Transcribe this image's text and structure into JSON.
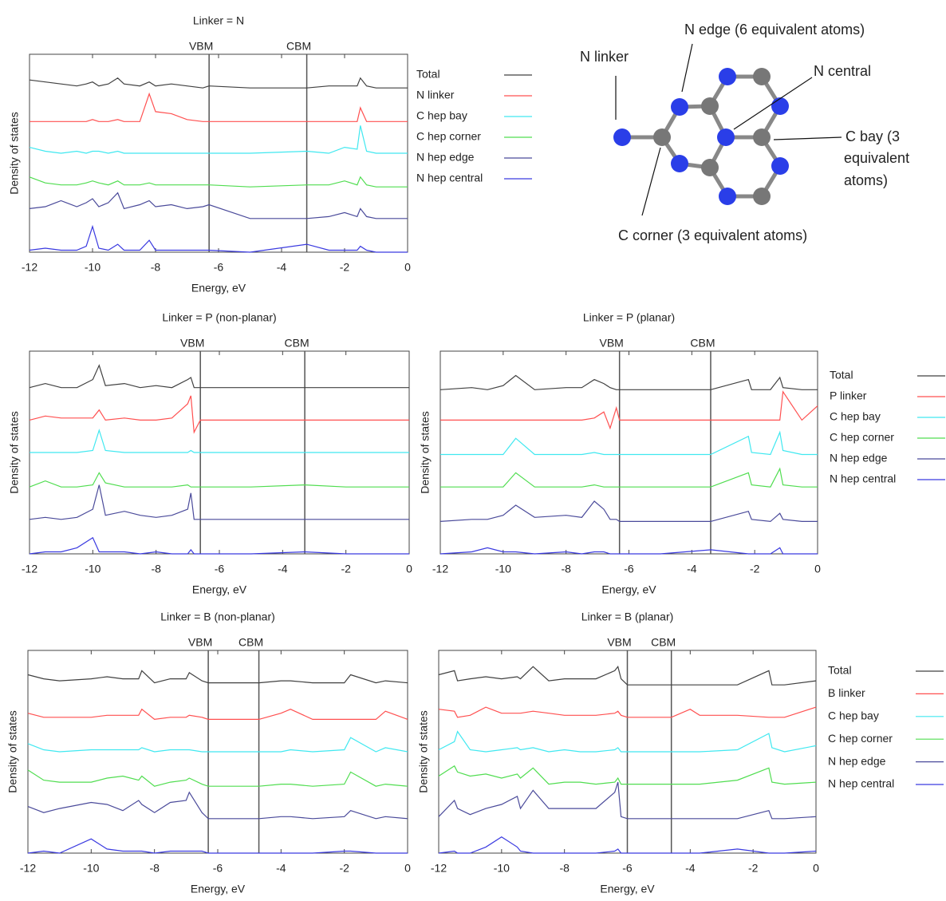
{
  "chart_data": [
    {
      "type": "line",
      "title": "Linker = N",
      "xlabel": "Energy, eV",
      "ylabel": "Density of states",
      "xlim": [
        -12,
        0
      ],
      "xticks": [
        -12,
        -10,
        -8,
        -6,
        -4,
        -2,
        0
      ],
      "ylim": [
        0,
        100
      ],
      "legend": true,
      "vlines": [
        {
          "value": -6.3,
          "label": "VBM"
        },
        {
          "value": -3.2,
          "label": "CBM"
        }
      ],
      "x": [
        -12,
        -11.5,
        -11,
        -10.5,
        -10.2,
        -10,
        -9.8,
        -9.5,
        -9.2,
        -9,
        -8.5,
        -8.2,
        -8,
        -7.5,
        -7,
        -6.5,
        -6.3,
        -5,
        -3.2,
        -2.5,
        -2,
        -1.6,
        -1.5,
        -1.3,
        -1,
        0
      ],
      "series": [
        {
          "name": "Total",
          "color": "#404040",
          "values": [
            87,
            86,
            85,
            84,
            85,
            86,
            84,
            85,
            88,
            85,
            84,
            86,
            84,
            85,
            84,
            83,
            84,
            83,
            83,
            84,
            84,
            84,
            88,
            84,
            83,
            83
          ]
        },
        {
          "name": "N linker",
          "color": "#ff5050",
          "values": [
            66,
            66,
            66,
            66,
            66,
            67,
            66,
            66,
            67,
            66,
            66,
            80,
            71,
            70,
            67,
            66,
            66,
            66,
            66,
            66,
            66,
            66,
            73,
            66,
            66,
            66
          ]
        },
        {
          "name": "C hep bay",
          "color": "#40e8f0",
          "values": [
            53,
            51,
            50,
            51,
            50,
            51,
            51,
            50,
            51,
            50,
            50,
            50,
            50,
            50,
            50,
            50,
            50,
            50,
            51,
            50,
            53,
            52,
            64,
            51,
            50,
            50
          ]
        },
        {
          "name": "C hep corner",
          "color": "#50dd50",
          "values": [
            38,
            35,
            34,
            34,
            35,
            36,
            35,
            34,
            36,
            34,
            34,
            35,
            34,
            34,
            34,
            34,
            34,
            33,
            34,
            34,
            36,
            34,
            38,
            34,
            33,
            33
          ]
        },
        {
          "name": "N hep edge",
          "color": "#4a4a9a",
          "values": [
            22,
            23,
            26,
            23,
            25,
            27,
            23,
            25,
            30,
            22,
            24,
            26,
            23,
            24,
            22,
            23,
            24,
            17,
            17,
            18,
            20,
            18,
            22,
            18,
            17,
            17
          ]
        },
        {
          "name": "N hep central",
          "color": "#3a3ae0",
          "values": [
            1,
            2,
            1,
            1,
            3,
            13,
            2,
            1,
            4,
            1,
            1,
            6,
            1,
            1,
            1,
            1,
            1,
            0,
            4,
            1,
            1,
            1,
            3,
            1,
            0,
            0
          ]
        }
      ]
    },
    {
      "type": "line",
      "title": "Linker = P (non-planar)",
      "xlabel": "Energy, eV",
      "ylabel": "Density of states",
      "xlim": [
        -12,
        0
      ],
      "xticks": [
        -12,
        -10,
        -8,
        -6,
        -4,
        -2,
        0
      ],
      "ylim": [
        0,
        100
      ],
      "legend": false,
      "vlines": [
        {
          "value": -6.6,
          "label": "VBM"
        },
        {
          "value": -3.3,
          "label": "CBM"
        }
      ],
      "x": [
        -12,
        -11.5,
        -11,
        -10.5,
        -10,
        -9.8,
        -9.6,
        -9,
        -8.5,
        -8,
        -7.5,
        -7,
        -6.9,
        -6.8,
        -6.6,
        -5,
        -3.3,
        -2,
        -1,
        0
      ],
      "series": [
        {
          "color": "#404040",
          "values": [
            82,
            84,
            82,
            82,
            86,
            93,
            83,
            84,
            82,
            83,
            82,
            86,
            87,
            82,
            82,
            82,
            82,
            82,
            82,
            82
          ]
        },
        {
          "color": "#ff5050",
          "values": [
            66,
            68,
            67,
            67,
            67,
            71,
            66,
            67,
            66,
            66,
            67,
            74,
            78,
            60,
            66,
            66,
            66,
            66,
            66,
            66
          ]
        },
        {
          "color": "#40e8f0",
          "values": [
            50,
            50,
            50,
            50,
            51,
            61,
            51,
            50,
            50,
            50,
            50,
            50,
            51,
            50,
            50,
            50,
            50,
            50,
            50,
            50
          ]
        },
        {
          "color": "#50dd50",
          "values": [
            33,
            36,
            33,
            33,
            34,
            40,
            35,
            33,
            33,
            33,
            33,
            34,
            33,
            33,
            33,
            33,
            34,
            33,
            33,
            33
          ]
        },
        {
          "color": "#4a4a9a",
          "values": [
            17,
            18,
            17,
            18,
            22,
            34,
            19,
            21,
            19,
            18,
            19,
            22,
            30,
            17,
            17,
            17,
            17,
            17,
            17,
            17
          ]
        },
        {
          "color": "#3a3ae0",
          "values": [
            0,
            1,
            1,
            3,
            8,
            1,
            1,
            1,
            0,
            1,
            0,
            0,
            2,
            0,
            0,
            0,
            1,
            0,
            0,
            0
          ]
        }
      ]
    },
    {
      "type": "line",
      "title": "Linker = P (planar)",
      "xlabel": "Energy, eV",
      "ylabel": "Density of states",
      "xlim": [
        -12,
        0
      ],
      "xticks": [
        -12,
        -10,
        -8,
        -6,
        -4,
        -2,
        0
      ],
      "ylim": [
        0,
        100
      ],
      "legend": true,
      "vlines": [
        {
          "value": -6.3,
          "label": "VBM"
        },
        {
          "value": -3.4,
          "label": "CBM"
        }
      ],
      "x": [
        -12,
        -11,
        -10.5,
        -10,
        -9.6,
        -9,
        -8,
        -7.5,
        -7.1,
        -6.8,
        -6.6,
        -6.4,
        -6.3,
        -5,
        -3.4,
        -2.2,
        -2.1,
        -1.5,
        -1.2,
        -1.1,
        -0.5,
        0
      ],
      "series": [
        {
          "name": "Total",
          "color": "#404040",
          "values": [
            81,
            82,
            81,
            83,
            88,
            81,
            82,
            82,
            86,
            84,
            82,
            81,
            81,
            81,
            81,
            86,
            81,
            81,
            87,
            82,
            81,
            81
          ]
        },
        {
          "name": "P linker",
          "color": "#ff5050",
          "values": [
            66,
            66,
            66,
            66,
            66,
            66,
            66,
            66,
            67,
            70,
            62,
            72,
            66,
            66,
            66,
            66,
            66,
            66,
            66,
            80,
            66,
            73
          ]
        },
        {
          "name": "C hep bay",
          "color": "#40e8f0",
          "values": [
            49,
            49,
            49,
            49,
            57,
            49,
            49,
            49,
            50,
            49,
            49,
            49,
            49,
            49,
            49,
            58,
            50,
            49,
            60,
            51,
            49,
            49
          ]
        },
        {
          "name": "C hep corner",
          "color": "#50dd50",
          "values": [
            33,
            33,
            33,
            33,
            40,
            33,
            33,
            33,
            34,
            33,
            33,
            33,
            33,
            33,
            33,
            40,
            34,
            33,
            42,
            34,
            33,
            33
          ]
        },
        {
          "name": "N hep edge",
          "color": "#4a4a9a",
          "values": [
            16,
            17,
            17,
            19,
            24,
            18,
            19,
            18,
            26,
            22,
            17,
            17,
            16,
            16,
            16,
            21,
            17,
            16,
            20,
            17,
            16,
            16
          ]
        },
        {
          "name": "N hep central",
          "color": "#3a3ae0",
          "values": [
            0,
            1,
            3,
            1,
            1,
            0,
            1,
            0,
            1,
            1,
            0,
            0,
            0,
            0,
            2,
            0,
            0,
            0,
            3,
            0,
            0,
            0
          ]
        }
      ]
    },
    {
      "type": "line",
      "title": "Linker = B (non-planar)",
      "xlabel": "Energy, eV",
      "ylabel": "Density of states",
      "xlim": [
        -12,
        0
      ],
      "xticks": [
        -12,
        -10,
        -8,
        -6,
        -4,
        -2,
        0
      ],
      "ylim": [
        0,
        100
      ],
      "legend": false,
      "vlines": [
        {
          "value": -6.3,
          "label": "VBM"
        },
        {
          "value": -4.7,
          "label": "CBM"
        }
      ],
      "x": [
        -12,
        -11.5,
        -11,
        -10,
        -9.5,
        -9,
        -8.5,
        -8.4,
        -8,
        -7.5,
        -7,
        -6.9,
        -6.5,
        -6.3,
        -4.7,
        -4,
        -3.7,
        -3,
        -2,
        -1.8,
        -1,
        -0.7,
        0
      ],
      "series": [
        {
          "color": "#404040",
          "values": [
            88,
            86,
            85,
            86,
            87,
            86,
            86,
            90,
            84,
            86,
            86,
            89,
            85,
            84,
            84,
            85,
            85,
            84,
            84,
            88,
            84,
            85,
            84
          ]
        },
        {
          "color": "#ff5050",
          "values": [
            69,
            67,
            67,
            67,
            68,
            68,
            68,
            71,
            66,
            67,
            67,
            68,
            67,
            66,
            66,
            69,
            71,
            66,
            66,
            66,
            66,
            70,
            66
          ]
        },
        {
          "color": "#40e8f0",
          "values": [
            54,
            51,
            50,
            51,
            51,
            51,
            51,
            52,
            50,
            51,
            51,
            51,
            50,
            50,
            50,
            50,
            51,
            50,
            51,
            57,
            50,
            52,
            50
          ]
        },
        {
          "color": "#50dd50",
          "values": [
            41,
            36,
            35,
            35,
            37,
            38,
            36,
            38,
            33,
            35,
            36,
            37,
            34,
            33,
            33,
            34,
            34,
            33,
            34,
            40,
            33,
            34,
            33
          ]
        },
        {
          "color": "#4a4a9a",
          "values": [
            23,
            20,
            22,
            25,
            24,
            21,
            26,
            24,
            20,
            25,
            26,
            30,
            20,
            17,
            17,
            18,
            18,
            17,
            18,
            21,
            17,
            18,
            17
          ]
        },
        {
          "color": "#3a3ae0",
          "values": [
            0,
            1,
            0,
            7,
            2,
            1,
            1,
            1,
            0,
            1,
            1,
            1,
            1,
            0,
            0,
            0,
            0,
            0,
            1,
            1,
            0,
            0,
            0
          ]
        }
      ]
    },
    {
      "type": "line",
      "title": "Linker = B (planar)",
      "xlabel": "Energy, eV",
      "ylabel": "Density of states",
      "xlim": [
        -12,
        0
      ],
      "xticks": [
        -12,
        -10,
        -8,
        -6,
        -4,
        -2,
        0
      ],
      "ylim": [
        0,
        100
      ],
      "legend": true,
      "vlines": [
        {
          "value": -6,
          "label": "VBM"
        },
        {
          "value": -4.6,
          "label": "CBM"
        }
      ],
      "x": [
        -12,
        -11.5,
        -11.4,
        -11,
        -10.5,
        -10,
        -9.5,
        -9.4,
        -9,
        -8.5,
        -8,
        -7.5,
        -7,
        -6.4,
        -6.3,
        -6.2,
        -6,
        -4.6,
        -4,
        -3.7,
        -2.5,
        -1.5,
        -1.4,
        -1,
        0
      ],
      "series": [
        {
          "name": "Total",
          "color": "#404040",
          "values": [
            88,
            90,
            85,
            86,
            87,
            86,
            87,
            86,
            92,
            85,
            86,
            86,
            86,
            90,
            92,
            86,
            83,
            83,
            83,
            83,
            83,
            90,
            83,
            83,
            85
          ]
        },
        {
          "name": "B linker",
          "color": "#ff5050",
          "values": [
            71,
            70,
            67,
            68,
            72,
            69,
            69,
            69,
            70,
            69,
            68,
            68,
            68,
            69,
            70,
            68,
            67,
            67,
            71,
            68,
            68,
            67,
            67,
            67,
            72
          ]
        },
        {
          "name": "C hep bay",
          "color": "#40e8f0",
          "values": [
            51,
            55,
            60,
            51,
            50,
            51,
            52,
            51,
            52,
            50,
            51,
            50,
            50,
            51,
            52,
            50,
            50,
            50,
            50,
            50,
            51,
            59,
            52,
            50,
            53
          ]
        },
        {
          "name": "C hep corner",
          "color": "#50dd50",
          "values": [
            38,
            43,
            40,
            38,
            39,
            37,
            39,
            37,
            42,
            34,
            35,
            35,
            34,
            35,
            37,
            34,
            34,
            34,
            34,
            34,
            36,
            42,
            35,
            34,
            35
          ]
        },
        {
          "name": "N hep edge",
          "color": "#4a4a9a",
          "values": [
            18,
            26,
            22,
            19,
            22,
            24,
            28,
            22,
            31,
            22,
            22,
            22,
            22,
            30,
            35,
            18,
            17,
            17,
            17,
            17,
            17,
            21,
            17,
            17,
            18
          ]
        },
        {
          "name": "N hep central",
          "color": "#3a3ae0",
          "values": [
            0,
            1,
            0,
            0,
            3,
            8,
            3,
            1,
            0,
            0,
            0,
            0,
            0,
            1,
            2,
            0,
            0,
            0,
            0,
            0,
            2,
            0,
            0,
            0,
            1
          ]
        }
      ]
    }
  ],
  "diagram": {
    "labels": [
      "N linker",
      "N edge (6 equivalent atoms)",
      "N central",
      [
        "C bay (3",
        "equivalent",
        "atoms)"
      ],
      "C corner (3 equivalent atoms)"
    ]
  }
}
